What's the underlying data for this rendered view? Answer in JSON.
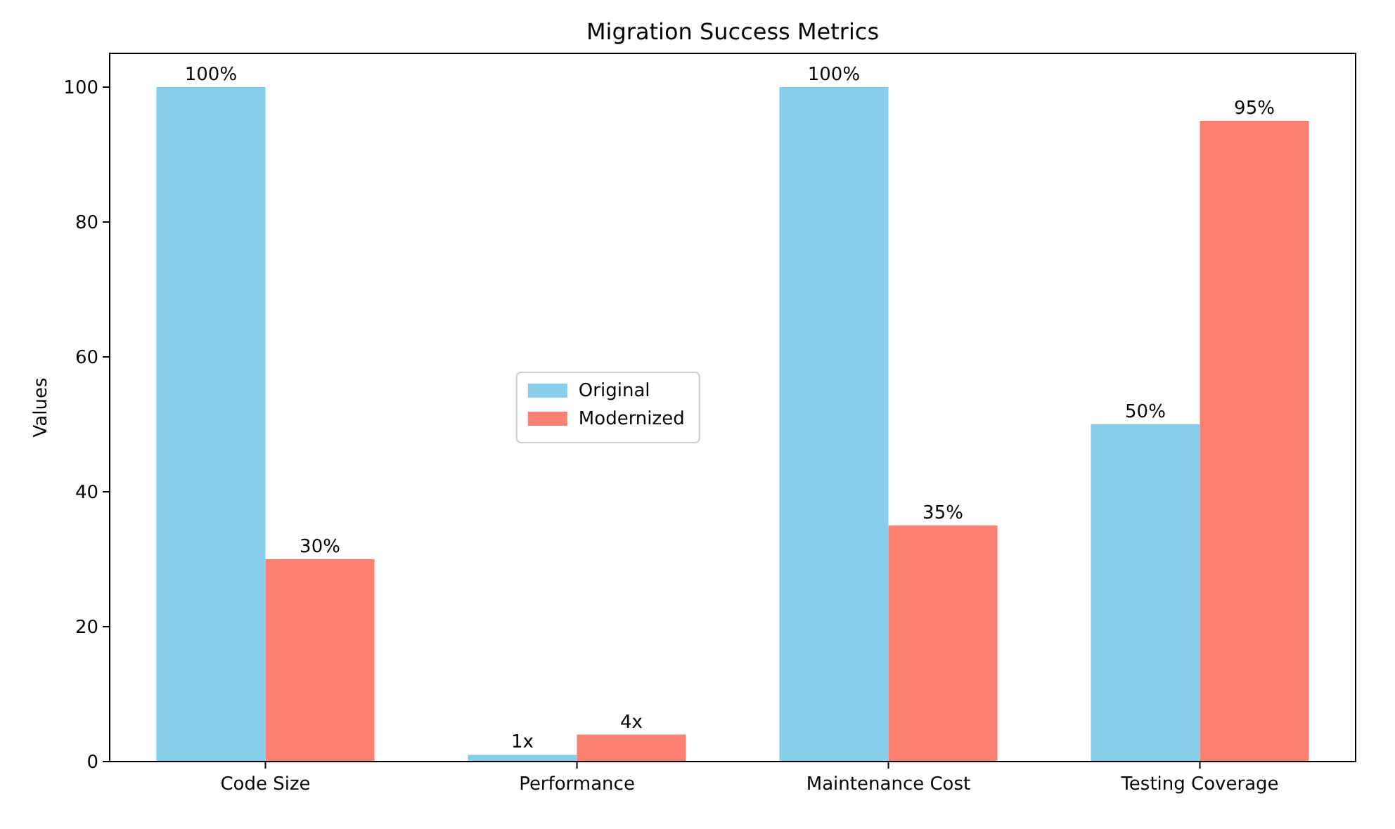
{
  "chart_data": {
    "type": "bar",
    "title": "Migration Success Metrics",
    "ylabel": "Values",
    "categories": [
      "Code Size",
      "Performance",
      "Maintenance Cost",
      "Testing Coverage"
    ],
    "series": [
      {
        "name": "Original",
        "color": "#87ceeb",
        "values": [
          100,
          1,
          100,
          50
        ],
        "value_labels": [
          "100%",
          "1x",
          "100%",
          "50%"
        ]
      },
      {
        "name": "Modernized",
        "color": "#fa8072",
        "values": [
          30,
          4,
          35,
          95
        ],
        "value_labels": [
          "30%",
          "4x",
          "35%",
          "95%"
        ]
      }
    ],
    "ylim": [
      0,
      105
    ],
    "yticks": [
      0,
      20,
      40,
      60,
      80,
      100
    ],
    "grid": false,
    "legend": "center"
  }
}
